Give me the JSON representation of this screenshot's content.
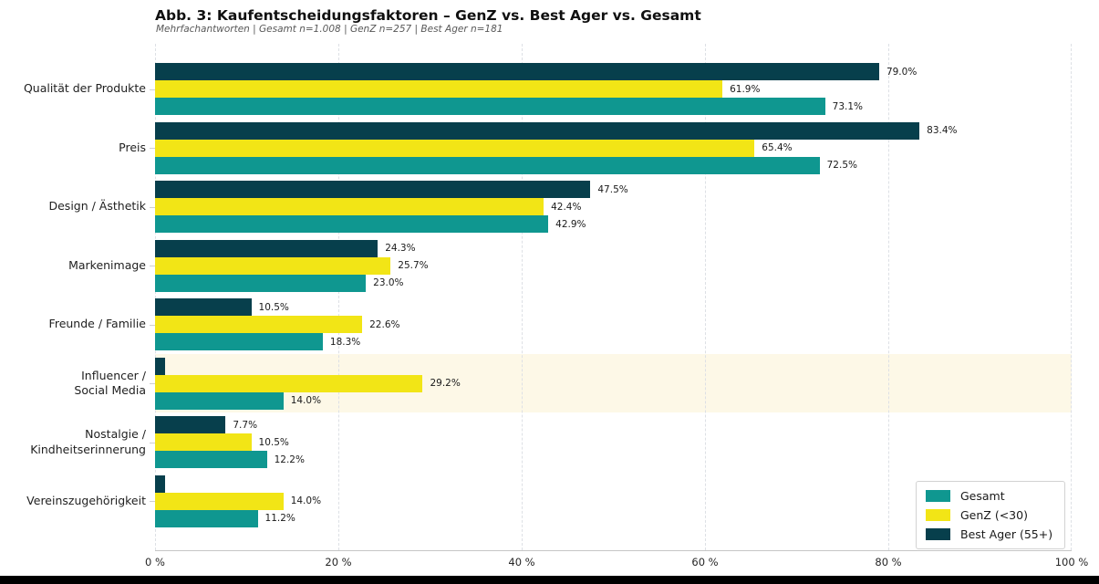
{
  "header": {
    "title": "Abb. 3: Kaufentscheidungsfaktoren – GenZ vs. Best Ager vs. Gesamt",
    "subtitle": "Mehrfachantworten | Gesamt n=1.008 | GenZ n=257 | Best Ager n=181"
  },
  "colors": {
    "gesamt": "#0f9790",
    "genz": "#f2e516",
    "best_ager": "#073f4c",
    "highlight_row_bg": "#fdf8e7",
    "gridline": "#dde0e5",
    "axis_line": "#c6c6c6",
    "bottom_strip": "#000000"
  },
  "legend": {
    "items": [
      {
        "label": "Gesamt",
        "color_key": "gesamt"
      },
      {
        "label": "GenZ (<30)",
        "color_key": "genz"
      },
      {
        "label": "Best Ager (55+)",
        "color_key": "best_ager"
      }
    ]
  },
  "x_axis": {
    "ticks": [
      {
        "pct": 0,
        "label": "0 %"
      },
      {
        "pct": 20,
        "label": "20 %"
      },
      {
        "pct": 40,
        "label": "40 %"
      },
      {
        "pct": 60,
        "label": "60 %"
      },
      {
        "pct": 80,
        "label": "80 %"
      },
      {
        "pct": 100,
        "label": "100 %"
      }
    ]
  },
  "chart_data": {
    "type": "bar",
    "orientation": "horizontal",
    "title": "Abb. 3: Kaufentscheidungsfaktoren – GenZ vs. Best Ager vs. Gesamt",
    "subtitle": "Mehrfachantworten | Gesamt n=1.008 | GenZ n=257 | Best Ager n=181",
    "xlim": [
      0,
      100
    ],
    "grid": "vertical-dashed",
    "legend_position": "lower right",
    "categories": [
      "Qualität der Produkte",
      "Preis",
      "Design / Ästhetik",
      "Markenimage",
      "Freunde / Familie",
      "Influencer / Social Media",
      "Nostalgie / Kindheitserinnerung",
      "Vereinszugehörigkeit"
    ],
    "category_label_lines": [
      [
        "Qualität der Produkte"
      ],
      [
        "Preis"
      ],
      [
        "Design / Ästhetik"
      ],
      [
        "Markenimage"
      ],
      [
        "Freunde / Familie"
      ],
      [
        "Influencer /",
        "Social Media"
      ],
      [
        "Nostalgie /",
        "Kindheitserinnerung"
      ],
      [
        "Vereinszugehörigkeit"
      ]
    ],
    "series_display_order_top_to_bottom": [
      "best_ager",
      "genz",
      "gesamt"
    ],
    "series": [
      {
        "key": "best_ager",
        "name": "Best Ager (55+)",
        "values": [
          79.0,
          83.4,
          47.5,
          24.3,
          10.5,
          1.1,
          7.7,
          1.1
        ],
        "bar_labels": [
          "79.0%",
          "83.4%",
          "47.5%",
          "24.3%",
          "10.5%",
          null,
          "7.7%",
          null
        ]
      },
      {
        "key": "genz",
        "name": "GenZ (<30)",
        "values": [
          61.9,
          65.4,
          42.4,
          25.7,
          22.6,
          29.2,
          10.5,
          14.0
        ],
        "bar_labels": [
          "61.9%",
          "65.4%",
          "42.4%",
          "25.7%",
          "22.6%",
          "29.2%",
          "10.5%",
          "14.0%"
        ]
      },
      {
        "key": "gesamt",
        "name": "Gesamt",
        "values": [
          73.1,
          72.5,
          42.9,
          23.0,
          18.3,
          14.0,
          12.2,
          11.2
        ],
        "bar_labels": [
          "73.1%",
          "72.5%",
          "42.9%",
          "23.0%",
          "18.3%",
          "14.0%",
          "12.2%",
          "11.2%"
        ]
      }
    ],
    "highlighted_category_index": 5
  }
}
